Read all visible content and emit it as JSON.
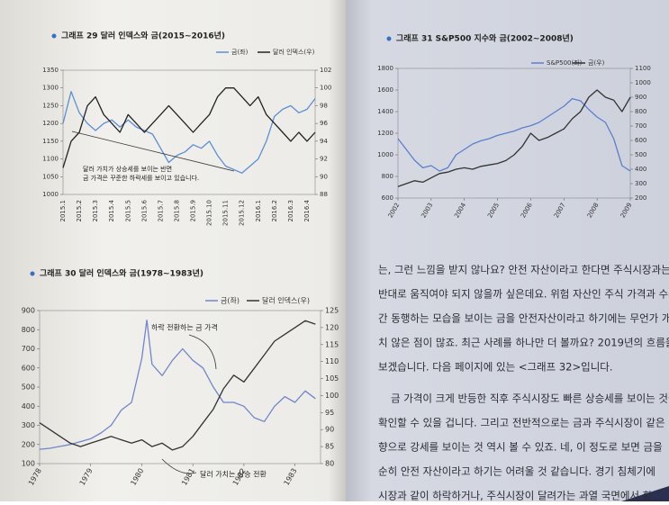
{
  "chart_data": [
    {
      "type": "line",
      "title": "그래프 29 달러 인덱스와 금(2015~2016년)",
      "categories": [
        "2015.1",
        null,
        "2015.2",
        null,
        "2015.3",
        null,
        "2015.4",
        null,
        "2015.5",
        null,
        "2015.6",
        null,
        "2015.7",
        null,
        "2015.8",
        null,
        "2015.9",
        null,
        "2015.10",
        null,
        "2015.11",
        null,
        "2015.12",
        null,
        "2016.1",
        null,
        "2016.2",
        null,
        "2016.3",
        null,
        "2016.4",
        null
      ],
      "series": [
        {
          "name": "금(좌)",
          "color": "#5b8fd6",
          "values": [
            1200,
            1290,
            1230,
            1200,
            1180,
            1200,
            1210,
            1190,
            1210,
            1190,
            1180,
            1170,
            1130,
            1090,
            1110,
            1120,
            1140,
            1130,
            1150,
            1110,
            1080,
            1070,
            1060,
            1080,
            1100,
            1150,
            1220,
            1240,
            1250,
            1230,
            1240,
            1270
          ]
        },
        {
          "name": "달러 인덱스(우)",
          "color": "#222222",
          "axis": "y2",
          "values": [
            91,
            94,
            95,
            98,
            99,
            97,
            96,
            95,
            97,
            96,
            95,
            96,
            97,
            98,
            97,
            96,
            95,
            96,
            97,
            99,
            100,
            100,
            99,
            98,
            99,
            97,
            96,
            95,
            94,
            95,
            94,
            95
          ]
        }
      ],
      "ylim": [
        1000,
        1350
      ],
      "yticks": [
        1000,
        1050,
        1100,
        1150,
        1200,
        1250,
        1300,
        1350
      ],
      "y2lim": [
        88,
        102
      ],
      "y2ticks": [
        88,
        90,
        92,
        94,
        96,
        98,
        100,
        102
      ],
      "annotations": [
        "달러 가치가 상승세를 보이는 반면",
        "금 가격은 꾸준한 하락세를 보이고 있습니다."
      ]
    },
    {
      "type": "line",
      "title": "그래프 30 달러 인덱스와 금(1978~1983년)",
      "x": [
        1978,
        1978.2,
        1978.4,
        1978.6,
        1978.8,
        1979,
        1979.2,
        1979.4,
        1979.6,
        1979.8,
        1980,
        1980.1,
        1980.2,
        1980.4,
        1980.6,
        1980.8,
        1981,
        1981.2,
        1981.4,
        1981.6,
        1981.8,
        1982,
        1982.2,
        1982.4,
        1982.6,
        1982.8,
        1983,
        1983.2,
        1983.4
      ],
      "series": [
        {
          "name": "금(좌)",
          "color": "#6f86c9",
          "values": [
            175,
            180,
            190,
            200,
            215,
            230,
            260,
            300,
            380,
            420,
            650,
            850,
            620,
            560,
            640,
            700,
            640,
            600,
            500,
            420,
            420,
            400,
            340,
            320,
            400,
            450,
            420,
            480,
            440
          ]
        },
        {
          "name": "달러 인덱스(우)",
          "color": "#333333",
          "axis": "y2",
          "values": [
            92,
            90,
            88,
            86,
            85,
            86,
            87,
            88,
            87,
            86,
            87,
            86,
            85,
            86,
            84,
            85,
            88,
            92,
            96,
            102,
            106,
            104,
            108,
            112,
            116,
            118,
            120,
            122,
            121
          ]
        }
      ],
      "xlim": [
        1978,
        1983.5
      ],
      "xticks": [
        1978,
        1979,
        1980,
        1981,
        1982,
        1983
      ],
      "ylim": [
        100,
        900
      ],
      "yticks": [
        100,
        200,
        300,
        400,
        500,
        600,
        700,
        800,
        900
      ],
      "y2lim": [
        80,
        125
      ],
      "y2ticks": [
        80,
        85,
        90,
        95,
        100,
        105,
        110,
        115,
        120,
        125
      ],
      "annotations": [
        "하락 전환하는 금 가격",
        "달러 가치는 상승 전환"
      ]
    },
    {
      "type": "line",
      "title": "그래프 31 S&P500 지수와 금(2002~2008년)",
      "x": [
        2002,
        2002.25,
        2002.5,
        2002.75,
        2003,
        2003.25,
        2003.5,
        2003.75,
        2004,
        2004.25,
        2004.5,
        2004.75,
        2005,
        2005.25,
        2005.5,
        2005.75,
        2006,
        2006.25,
        2006.5,
        2006.75,
        2007,
        2007.25,
        2007.5,
        2007.75,
        2008,
        2008.25,
        2008.5,
        2008.75,
        2009
      ],
      "series": [
        {
          "name": "S&P500(좌)",
          "color": "#5b7fcf",
          "values": [
            1150,
            1050,
            950,
            880,
            900,
            850,
            880,
            1000,
            1050,
            1100,
            1130,
            1150,
            1180,
            1200,
            1220,
            1250,
            1270,
            1300,
            1350,
            1400,
            1450,
            1520,
            1500,
            1420,
            1350,
            1300,
            1150,
            900,
            850
          ]
        },
        {
          "name": "금(우)",
          "color": "#333333",
          "axis": "y2",
          "values": [
            280,
            300,
            320,
            310,
            340,
            370,
            380,
            400,
            410,
            400,
            420,
            430,
            440,
            460,
            500,
            560,
            650,
            600,
            620,
            650,
            680,
            750,
            800,
            900,
            950,
            900,
            880,
            800,
            900
          ]
        }
      ],
      "xlim": [
        2002,
        2009
      ],
      "xticks": [
        2002,
        2003,
        2004,
        2005,
        2006,
        2007,
        2008,
        2009
      ],
      "ylim": [
        600,
        1800
      ],
      "yticks": [
        600,
        800,
        1000,
        1200,
        1400,
        1600,
        1800
      ],
      "y2lim": [
        200,
        1100
      ],
      "y2ticks": [
        200,
        300,
        400,
        500,
        600,
        700,
        800,
        900,
        1000,
        1100
      ],
      "annotations": []
    }
  ],
  "text": {
    "lines": [
      "는, 그런 느낌을 받지 않나요? 안전 자산이라고 한다면 주식시장과는",
      "반대로 움직여야 되지 않을까 싶은데요. 위험 자산인 주식 가격과 수년",
      "간 동행하는 모습을 보이는 금을 안전자산이라고 하기에는 무언가 개운",
      "치 않은 점이 많죠. 최근 사례를 하나만 더 볼까요? 2019년의 흐름을",
      "보겠습니다. 다음 페이지에 있는 <그래프 32>입니다.",
      "금 가격이 크게 반등한 직후 주식시장도 빠른 상승세를 보이는 것을",
      "확인할 수 있을 겁니다. 그리고 전반적으로는 금과 주식시장이 같은 방",
      "향으로 강세를 보이는 것 역시 볼 수 있죠. 네, 이 정도로 보면 금을",
      "순히 안전 자산이라고 하기는 어려울 것 같습니다. 경기 침체기에",
      "시장과 같이 하락하거나, 주식시장이 달려가는 과열 국면에서 함"
    ]
  }
}
